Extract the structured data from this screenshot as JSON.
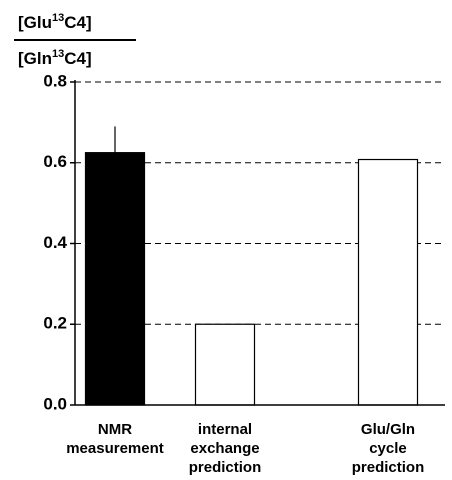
{
  "chart_data": {
    "type": "bar",
    "y_label": {
      "numerator": [
        "[Glu",
        "13",
        "C4]"
      ],
      "denominator": [
        "[Gln",
        "13",
        "C4]"
      ]
    },
    "categories": [
      [
        "NMR",
        "measurement"
      ],
      [
        "internal",
        "exchange",
        "prediction"
      ],
      [
        "Glu/Gln",
        "cycle",
        "prediction"
      ]
    ],
    "values": [
      0.625,
      0.2,
      0.608
    ],
    "errors": [
      0.065,
      null,
      null
    ],
    "colors": [
      "#000000",
      "#ffffff",
      "#ffffff"
    ],
    "ylim": [
      0,
      0.8
    ],
    "yticks": [
      {
        "value": 0,
        "label": "0.0"
      },
      0.2,
      0.4,
      0.6,
      0.8
    ],
    "grid": true
  }
}
